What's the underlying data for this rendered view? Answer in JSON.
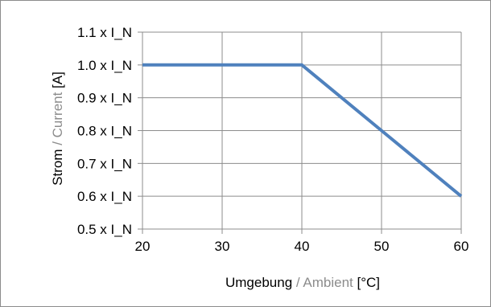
{
  "chart_data": {
    "type": "line",
    "title": "",
    "xlabel": {
      "parts": [
        {
          "text": "Umgebung",
          "color": "#000000"
        },
        {
          "text": " / Ambient ",
          "color": "#8c8c8c"
        },
        {
          "text": "[°C]",
          "color": "#000000"
        }
      ]
    },
    "ylabel": {
      "parts": [
        {
          "text": "Strom",
          "color": "#000000"
        },
        {
          "text": " / Current ",
          "color": "#8c8c8c"
        },
        {
          "text": "[A]",
          "color": "#000000"
        }
      ]
    },
    "xlim": [
      20,
      60
    ],
    "ylim": [
      0.5,
      1.1
    ],
    "x_ticks": [
      20,
      30,
      40,
      50,
      60
    ],
    "x_tick_labels": [
      "20",
      "30",
      "40",
      "50",
      "60"
    ],
    "y_ticks": [
      0.5,
      0.6,
      0.7,
      0.8,
      0.9,
      1.0,
      1.1
    ],
    "y_tick_labels": [
      "0.5 x I_N",
      "0.6 x I_N",
      "0.7 x I_N",
      "0.8 x I_N",
      "0.9 x I_N",
      "1.0 x I_N",
      "1.1 x I_N"
    ],
    "grid": true,
    "series": [
      {
        "x": [
          20,
          40,
          50,
          60
        ],
        "y": [
          1.0,
          1.0,
          0.8,
          0.6
        ],
        "color": "#4f81bd"
      }
    ],
    "colors": {
      "grid": "#8c8c8c",
      "axis": "#8c8c8c"
    }
  }
}
